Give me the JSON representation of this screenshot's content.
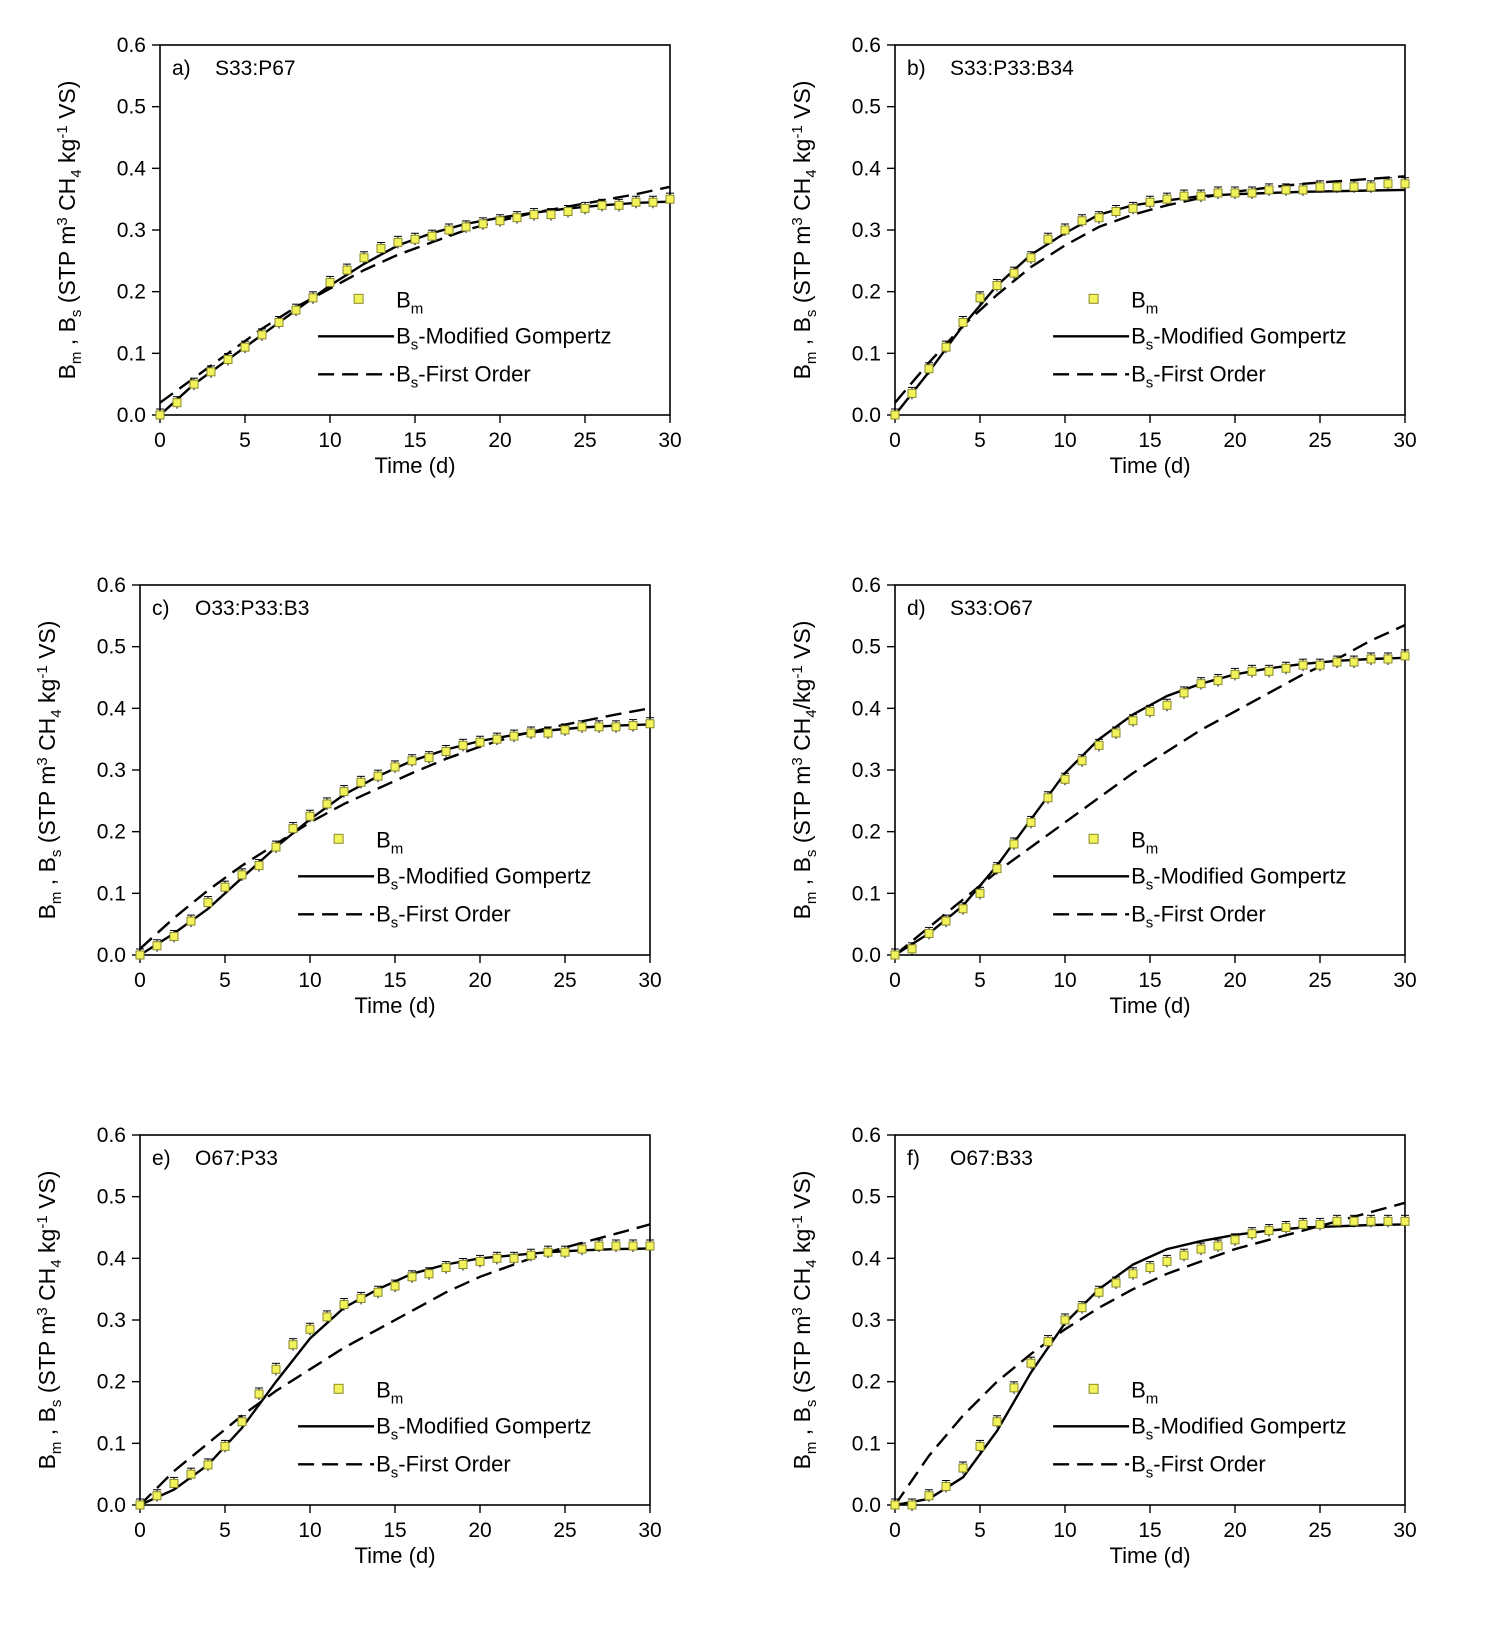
{
  "figure": {
    "xlabel": "Time (d)",
    "ylabel_base": "B",
    "ylabel_m": "m",
    "ylabel_s": "s",
    "ylabel_rest_a": " (STP m",
    "ylabel_sup3": "3",
    "ylabel_ch": "  CH",
    "ylabel_sub4": "4",
    "ylabel_kg": " kg",
    "ylabel_sup_m1": "-1",
    "ylabel_vs": " VS)",
    "ylabel_slash": "/kg",
    "legend": {
      "bm": "B",
      "bm_sub": "m",
      "gompertz": "B",
      "gompertz_sub": "s",
      "gompertz_text": "-Modified Gompertz",
      "first": "B",
      "first_sub": "s",
      "first_text": "-First Order"
    },
    "colors": {
      "marker_fill": "#f2f25a",
      "marker_stroke": "#8a8a2a",
      "line": "#000000"
    }
  },
  "chart_data": [
    {
      "id": "a",
      "label": "a)",
      "title": "S33:P67",
      "type": "line",
      "xlabel": "Time (d)",
      "ylabel": "Bm , Bs (STP m3 CH4 kg-1 VS)",
      "xlim": [
        0,
        30
      ],
      "ylim": [
        0,
        0.6
      ],
      "xticks": [
        "0",
        "5",
        "10",
        "15",
        "20",
        "25",
        "30"
      ],
      "yticks": [
        "0.0",
        "0.1",
        "0.2",
        "0.3",
        "0.4",
        "0.5",
        "0.6"
      ],
      "series": [
        {
          "name": "Bm",
          "x": [
            0,
            1,
            2,
            3,
            4,
            5,
            6,
            7,
            8,
            9,
            10,
            11,
            12,
            13,
            14,
            15,
            16,
            17,
            18,
            19,
            20,
            21,
            22,
            23,
            24,
            25,
            26,
            27,
            28,
            29,
            30
          ],
          "values": [
            0.0,
            0.02,
            0.05,
            0.07,
            0.09,
            0.11,
            0.13,
            0.15,
            0.17,
            0.19,
            0.215,
            0.235,
            0.255,
            0.27,
            0.28,
            0.285,
            0.29,
            0.3,
            0.305,
            0.31,
            0.315,
            0.32,
            0.325,
            0.325,
            0.33,
            0.335,
            0.34,
            0.34,
            0.345,
            0.345,
            0.35
          ]
        },
        {
          "name": "Bs-Modified Gompertz",
          "x": [
            0,
            2,
            4,
            6,
            8,
            10,
            12,
            14,
            16,
            18,
            20,
            22,
            24,
            26,
            28,
            30
          ],
          "values": [
            0.0,
            0.05,
            0.09,
            0.13,
            0.17,
            0.21,
            0.245,
            0.275,
            0.295,
            0.31,
            0.32,
            0.328,
            0.335,
            0.34,
            0.344,
            0.346
          ]
        },
        {
          "name": "Bs-First Order",
          "x": [
            0,
            2,
            4,
            6,
            8,
            10,
            12,
            14,
            16,
            18,
            20,
            22,
            24,
            26,
            28,
            30
          ],
          "values": [
            0.02,
            0.06,
            0.1,
            0.14,
            0.175,
            0.205,
            0.235,
            0.26,
            0.28,
            0.3,
            0.315,
            0.328,
            0.338,
            0.348,
            0.358,
            0.37
          ]
        }
      ]
    },
    {
      "id": "b",
      "label": "b)",
      "title": "S33:P33:B34",
      "type": "line",
      "xlabel": "Time (d)",
      "ylabel": "Bm , Bs (STP m3 CH4 kg-1 VS)",
      "xlim": [
        0,
        30
      ],
      "ylim": [
        0,
        0.6
      ],
      "xticks": [
        "0",
        "5",
        "10",
        "15",
        "20",
        "25",
        "30"
      ],
      "yticks": [
        "0.0",
        "0.1",
        "0.2",
        "0.3",
        "0.4",
        "0.5",
        "0.6"
      ],
      "series": [
        {
          "name": "Bm",
          "x": [
            0,
            1,
            2,
            3,
            4,
            5,
            6,
            7,
            8,
            9,
            10,
            11,
            12,
            13,
            14,
            15,
            16,
            17,
            18,
            19,
            20,
            21,
            22,
            23,
            24,
            25,
            26,
            27,
            28,
            29,
            30
          ],
          "values": [
            0.0,
            0.035,
            0.075,
            0.11,
            0.15,
            0.19,
            0.21,
            0.23,
            0.255,
            0.285,
            0.3,
            0.315,
            0.32,
            0.33,
            0.335,
            0.345,
            0.35,
            0.355,
            0.355,
            0.36,
            0.36,
            0.36,
            0.365,
            0.365,
            0.365,
            0.37,
            0.37,
            0.37,
            0.37,
            0.375,
            0.375
          ]
        },
        {
          "name": "Bs-Modified Gompertz",
          "x": [
            0,
            2,
            4,
            6,
            8,
            10,
            12,
            14,
            16,
            18,
            20,
            22,
            24,
            26,
            28,
            30
          ],
          "values": [
            0.0,
            0.07,
            0.145,
            0.21,
            0.26,
            0.295,
            0.325,
            0.34,
            0.348,
            0.355,
            0.358,
            0.36,
            0.362,
            0.363,
            0.364,
            0.365
          ]
        },
        {
          "name": "Bs-First Order",
          "x": [
            0,
            2,
            4,
            6,
            8,
            10,
            12,
            14,
            16,
            18,
            20,
            22,
            24,
            26,
            28,
            30
          ],
          "values": [
            0.02,
            0.085,
            0.145,
            0.195,
            0.24,
            0.275,
            0.305,
            0.325,
            0.34,
            0.352,
            0.362,
            0.369,
            0.375,
            0.379,
            0.383,
            0.387
          ]
        }
      ]
    },
    {
      "id": "c",
      "label": "c)",
      "title": "O33:P33:B3",
      "type": "line",
      "xlabel": "Time (d)",
      "ylabel": "Bm , Bs (STP m3 CH4 kg-1 VS)",
      "xlim": [
        0,
        30
      ],
      "ylim": [
        0,
        0.6
      ],
      "xticks": [
        "0",
        "5",
        "10",
        "15",
        "20",
        "25",
        "30"
      ],
      "yticks": [
        "0.0",
        "0.1",
        "0.2",
        "0.3",
        "0.4",
        "0.5",
        "0.6"
      ],
      "series": [
        {
          "name": "Bm",
          "x": [
            0,
            1,
            2,
            3,
            4,
            5,
            6,
            7,
            8,
            9,
            10,
            11,
            12,
            13,
            14,
            15,
            16,
            17,
            18,
            19,
            20,
            21,
            22,
            23,
            24,
            25,
            26,
            27,
            28,
            29,
            30
          ],
          "values": [
            0.0,
            0.015,
            0.03,
            0.055,
            0.085,
            0.11,
            0.13,
            0.145,
            0.175,
            0.205,
            0.225,
            0.245,
            0.265,
            0.28,
            0.29,
            0.305,
            0.315,
            0.32,
            0.33,
            0.34,
            0.345,
            0.35,
            0.355,
            0.36,
            0.36,
            0.365,
            0.37,
            0.37,
            0.37,
            0.372,
            0.375
          ]
        },
        {
          "name": "Bs-Modified Gompertz",
          "x": [
            0,
            2,
            4,
            6,
            8,
            10,
            12,
            14,
            16,
            18,
            20,
            22,
            24,
            26,
            28,
            30
          ],
          "values": [
            0.0,
            0.035,
            0.075,
            0.125,
            0.175,
            0.22,
            0.26,
            0.29,
            0.315,
            0.333,
            0.347,
            0.357,
            0.364,
            0.369,
            0.372,
            0.374
          ]
        },
        {
          "name": "Bs-First Order",
          "x": [
            0,
            2,
            4,
            6,
            8,
            10,
            12,
            14,
            16,
            18,
            20,
            22,
            24,
            26,
            28,
            30
          ],
          "values": [
            0.01,
            0.06,
            0.105,
            0.145,
            0.18,
            0.215,
            0.245,
            0.27,
            0.295,
            0.318,
            0.338,
            0.355,
            0.368,
            0.379,
            0.39,
            0.4
          ]
        }
      ]
    },
    {
      "id": "d",
      "label": "d)",
      "title": "S33:O67",
      "type": "line",
      "xlabel": "Time (d)",
      "ylabel": "Bm , Bs (STP m3 CH4/kg-1 VS)",
      "xlim": [
        0,
        30
      ],
      "ylim": [
        0,
        0.6
      ],
      "xticks": [
        "0",
        "5",
        "10",
        "15",
        "20",
        "25",
        "30"
      ],
      "yticks": [
        "0.0",
        "0.1",
        "0.2",
        "0.3",
        "0.4",
        "0.5",
        "0.6"
      ],
      "series": [
        {
          "name": "Bm",
          "x": [
            0,
            1,
            2,
            3,
            4,
            5,
            6,
            7,
            8,
            9,
            10,
            11,
            12,
            13,
            14,
            15,
            16,
            17,
            18,
            19,
            20,
            21,
            22,
            23,
            24,
            25,
            26,
            27,
            28,
            29,
            30
          ],
          "values": [
            0.0,
            0.01,
            0.035,
            0.055,
            0.075,
            0.1,
            0.14,
            0.18,
            0.215,
            0.255,
            0.285,
            0.315,
            0.34,
            0.36,
            0.38,
            0.395,
            0.405,
            0.425,
            0.44,
            0.445,
            0.455,
            0.46,
            0.46,
            0.465,
            0.47,
            0.47,
            0.475,
            0.475,
            0.48,
            0.48,
            0.485
          ]
        },
        {
          "name": "Bs-Modified Gompertz",
          "x": [
            0,
            2,
            4,
            6,
            8,
            10,
            12,
            14,
            16,
            18,
            20,
            22,
            24,
            26,
            28,
            30
          ],
          "values": [
            0.0,
            0.035,
            0.08,
            0.145,
            0.22,
            0.295,
            0.35,
            0.39,
            0.42,
            0.44,
            0.455,
            0.465,
            0.472,
            0.477,
            0.48,
            0.482
          ]
        },
        {
          "name": "Bs-First Order",
          "x": [
            0,
            2,
            4,
            6,
            8,
            10,
            12,
            14,
            16,
            18,
            20,
            22,
            24,
            26,
            28,
            30
          ],
          "values": [
            0.0,
            0.045,
            0.09,
            0.135,
            0.175,
            0.215,
            0.255,
            0.295,
            0.33,
            0.365,
            0.395,
            0.425,
            0.455,
            0.48,
            0.51,
            0.535
          ]
        }
      ]
    },
    {
      "id": "e",
      "label": "e)",
      "title": "O67:P33",
      "type": "line",
      "xlabel": "Time (d)",
      "ylabel": "Bm , Bs (STP m3 CH4 kg-1 VS)",
      "xlim": [
        0,
        30
      ],
      "ylim": [
        0,
        0.6
      ],
      "xticks": [
        "0",
        "5",
        "10",
        "15",
        "20",
        "25",
        "30"
      ],
      "yticks": [
        "0.0",
        "0.1",
        "0.2",
        "0.3",
        "0.4",
        "0.5",
        "0.6"
      ],
      "series": [
        {
          "name": "Bm",
          "x": [
            0,
            1,
            2,
            3,
            4,
            5,
            6,
            7,
            8,
            9,
            10,
            11,
            12,
            13,
            14,
            15,
            16,
            17,
            18,
            19,
            20,
            21,
            22,
            23,
            24,
            25,
            26,
            27,
            28,
            29,
            30
          ],
          "values": [
            0.0,
            0.015,
            0.035,
            0.05,
            0.065,
            0.095,
            0.135,
            0.18,
            0.22,
            0.26,
            0.285,
            0.305,
            0.325,
            0.335,
            0.345,
            0.355,
            0.37,
            0.375,
            0.385,
            0.39,
            0.395,
            0.4,
            0.4,
            0.405,
            0.41,
            0.41,
            0.415,
            0.42,
            0.42,
            0.42,
            0.42
          ]
        },
        {
          "name": "Bs-Modified Gompertz",
          "x": [
            0,
            2,
            4,
            6,
            8,
            10,
            12,
            14,
            16,
            18,
            20,
            22,
            24,
            26,
            28,
            30
          ],
          "values": [
            0.0,
            0.025,
            0.065,
            0.125,
            0.2,
            0.27,
            0.32,
            0.35,
            0.375,
            0.39,
            0.4,
            0.405,
            0.41,
            0.413,
            0.415,
            0.416
          ]
        },
        {
          "name": "Bs-First Order",
          "x": [
            0,
            2,
            4,
            6,
            8,
            10,
            12,
            14,
            16,
            18,
            20,
            22,
            24,
            26,
            28,
            30
          ],
          "values": [
            0.0,
            0.055,
            0.1,
            0.145,
            0.185,
            0.22,
            0.255,
            0.285,
            0.315,
            0.345,
            0.37,
            0.39,
            0.41,
            0.425,
            0.44,
            0.455
          ]
        }
      ]
    },
    {
      "id": "f",
      "label": "f)",
      "title": "O67:B33",
      "type": "line",
      "xlabel": "Time (d)",
      "ylabel": "Bm , Bs (STP m3 CH4 kg-1 VS)",
      "xlim": [
        0,
        30
      ],
      "ylim": [
        0,
        0.6
      ],
      "xticks": [
        "0",
        "5",
        "10",
        "15",
        "20",
        "25",
        "30"
      ],
      "yticks": [
        "0.0",
        "0.1",
        "0.2",
        "0.3",
        "0.4",
        "0.5",
        "0.6"
      ],
      "series": [
        {
          "name": "Bm",
          "x": [
            0,
            1,
            2,
            3,
            4,
            5,
            6,
            7,
            8,
            9,
            10,
            11,
            12,
            13,
            14,
            15,
            16,
            17,
            18,
            19,
            20,
            21,
            22,
            23,
            24,
            25,
            26,
            27,
            28,
            29,
            30
          ],
          "values": [
            0.0,
            0.0,
            0.015,
            0.03,
            0.06,
            0.095,
            0.135,
            0.19,
            0.23,
            0.265,
            0.3,
            0.32,
            0.345,
            0.36,
            0.375,
            0.385,
            0.395,
            0.405,
            0.415,
            0.42,
            0.43,
            0.44,
            0.445,
            0.45,
            0.455,
            0.455,
            0.46,
            0.46,
            0.46,
            0.46,
            0.46
          ]
        },
        {
          "name": "Bs-Modified Gompertz",
          "x": [
            0,
            2,
            4,
            6,
            8,
            10,
            12,
            14,
            16,
            18,
            20,
            22,
            24,
            26,
            28,
            30
          ],
          "values": [
            0.0,
            0.01,
            0.045,
            0.12,
            0.215,
            0.295,
            0.35,
            0.39,
            0.415,
            0.428,
            0.438,
            0.445,
            0.45,
            0.452,
            0.454,
            0.455
          ]
        },
        {
          "name": "Bs-First Order",
          "x": [
            0,
            2,
            4,
            6,
            8,
            10,
            12,
            14,
            16,
            18,
            20,
            22,
            24,
            26,
            28,
            30
          ],
          "values": [
            0.0,
            0.08,
            0.145,
            0.2,
            0.245,
            0.285,
            0.32,
            0.35,
            0.375,
            0.395,
            0.415,
            0.43,
            0.445,
            0.46,
            0.475,
            0.49
          ]
        }
      ]
    }
  ]
}
